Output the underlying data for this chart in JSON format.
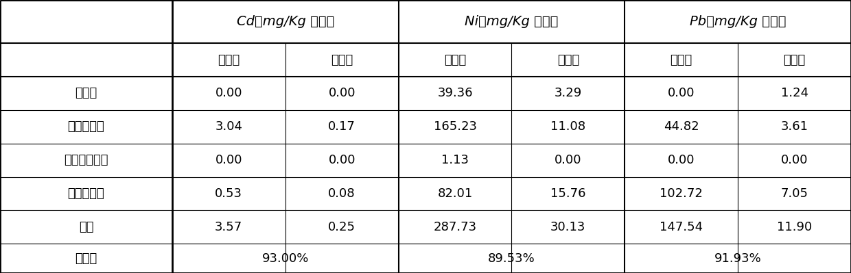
{
  "header1_labels": [
    "Cd（mg/Kg 土壤）",
    "Ni（mg/Kg 土壤）",
    "Pb（mg/Kg 土壤）"
  ],
  "header2_labels": [
    "治理前",
    "治理后",
    "治理前",
    "治理后",
    "治理前",
    "治理后"
  ],
  "row_labels": [
    "水溶态",
    "离子交换态",
    "碳酸盐结合态",
    "铁锰氧化态",
    "总量",
    "去除率"
  ],
  "data": [
    [
      "0.00",
      "0.00",
      "39.36",
      "3.29",
      "0.00",
      "1.24"
    ],
    [
      "3.04",
      "0.17",
      "165.23",
      "11.08",
      "44.82",
      "3.61"
    ],
    [
      "0.00",
      "0.00",
      "1.13",
      "0.00",
      "0.00",
      "0.00"
    ],
    [
      "0.53",
      "0.08",
      "82.01",
      "15.76",
      "102.72",
      "7.05"
    ],
    [
      "3.57",
      "0.25",
      "287.73",
      "30.13",
      "147.54",
      "11.90"
    ]
  ],
  "last_row_values": [
    "93.00%",
    "89.53%",
    "91.93%"
  ],
  "bg_color": "#ffffff",
  "text_color": "#000000",
  "outer_lw": 2.0,
  "inner_lw": 0.8,
  "thick_lw": 1.5,
  "font_size_h1": 14,
  "font_size_h2": 13,
  "font_size_data": 13,
  "font_size_row": 13
}
